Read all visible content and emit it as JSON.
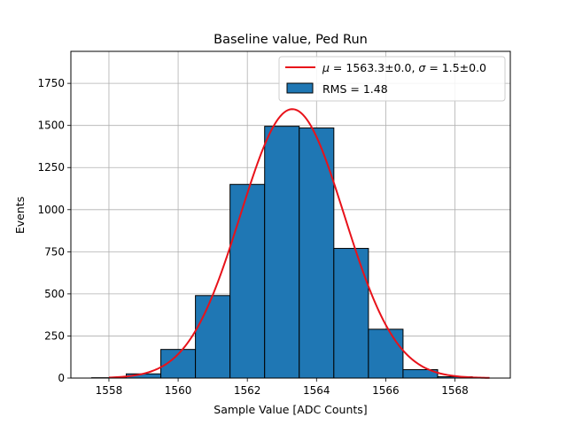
{
  "chart_data": {
    "type": "bar",
    "title": "Baseline value, Ped Run",
    "xlabel": "Sample Value [ADC Counts]",
    "ylabel": "Events",
    "xlim": [
      1556.9,
      1569.6
    ],
    "ylim": [
      0,
      1940
    ],
    "xticks": [
      1558,
      1560,
      1562,
      1564,
      1566,
      1568
    ],
    "yticks": [
      0,
      250,
      500,
      750,
      1000,
      1250,
      1500,
      1750
    ],
    "grid": true,
    "legend_position": "top-right",
    "bin_edges": [
      1557.5,
      1558.5,
      1559.5,
      1560.5,
      1561.5,
      1562.5,
      1563.5,
      1564.5,
      1565.5,
      1566.5,
      1567.5,
      1568.5
    ],
    "values": [
      2,
      25,
      170,
      490,
      1150,
      1495,
      1485,
      770,
      290,
      50,
      8
    ],
    "fit": {
      "mu": 1563.3,
      "sigma": 1.5,
      "amplitude": 1597,
      "x_range": [
        1558,
        1569
      ]
    },
    "series": [
      {
        "name": "μ = 1563.3±0.0, σ = 1.5±0.0",
        "kind": "line",
        "color": "#e8121a"
      },
      {
        "name": "RMS = 1.48",
        "kind": "histogram",
        "color": "#1f77b4"
      }
    ],
    "legend": {
      "fit_mu_label": "μ",
      "fit_mu_value": " = 1563.3±0.0, ",
      "fit_sigma_label": "σ",
      "fit_sigma_value": " = 1.5±0.0",
      "hist_label": "RMS = 1.48"
    }
  }
}
